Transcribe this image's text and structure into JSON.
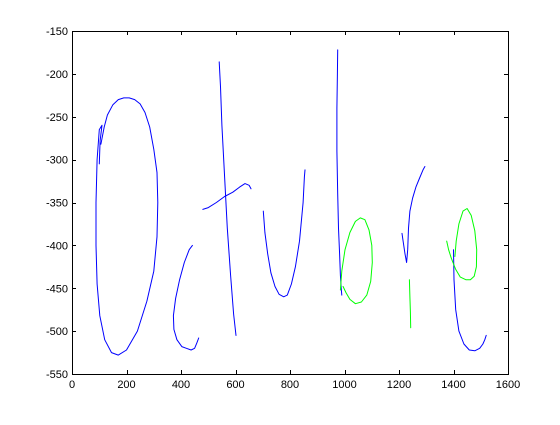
{
  "chart_data": {
    "type": "line",
    "title": "",
    "xlabel": "",
    "ylabel": "",
    "xlim": [
      0,
      1600
    ],
    "ylim": [
      -550,
      -150
    ],
    "xticks": [
      0,
      200,
      400,
      600,
      800,
      1000,
      1200,
      1400,
      1600
    ],
    "yticks": [
      -150,
      -200,
      -250,
      -300,
      -350,
      -400,
      -450,
      -500,
      -550
    ],
    "xtick_labels": [
      "0",
      "200",
      "400",
      "600",
      "800",
      "1000",
      "1200",
      "1400",
      "1600"
    ],
    "ytick_labels": [
      "-150",
      "-200",
      "-250",
      "-300",
      "-350",
      "-400",
      "-450",
      "-500",
      "-550"
    ],
    "grid": false,
    "colors": {
      "blue": "#0000ff",
      "green": "#00ff00",
      "axes": "#000000",
      "background": "#ffffff"
    },
    "series": [
      {
        "color": "blue",
        "points": [
          [
            100,
            -305
          ],
          [
            103,
            -278
          ],
          [
            110,
            -260
          ],
          [
            100,
            -265
          ],
          [
            92,
            -300
          ],
          [
            88,
            -350
          ],
          [
            88,
            -400
          ],
          [
            92,
            -445
          ],
          [
            102,
            -482
          ],
          [
            120,
            -510
          ],
          [
            145,
            -525
          ],
          [
            170,
            -528
          ],
          [
            200,
            -522
          ],
          [
            240,
            -500
          ],
          [
            275,
            -465
          ],
          [
            300,
            -430
          ],
          [
            312,
            -390
          ],
          [
            315,
            -350
          ],
          [
            312,
            -315
          ],
          [
            300,
            -288
          ],
          [
            285,
            -262
          ],
          [
            268,
            -245
          ],
          [
            250,
            -235
          ],
          [
            230,
            -230
          ],
          [
            210,
            -228
          ],
          [
            190,
            -228
          ],
          [
            170,
            -230
          ],
          [
            150,
            -236
          ],
          [
            130,
            -248
          ],
          [
            118,
            -262
          ],
          [
            106,
            -282
          ]
        ]
      },
      {
        "color": "blue",
        "points": [
          [
            442,
            -400
          ],
          [
            430,
            -405
          ],
          [
            412,
            -420
          ],
          [
            395,
            -440
          ],
          [
            380,
            -462
          ],
          [
            372,
            -482
          ],
          [
            374,
            -498
          ],
          [
            385,
            -510
          ],
          [
            403,
            -518
          ],
          [
            420,
            -520
          ],
          [
            437,
            -522
          ],
          [
            450,
            -520
          ],
          [
            458,
            -514
          ],
          [
            465,
            -508
          ]
        ]
      },
      {
        "color": "blue",
        "points": [
          [
            540,
            -186
          ],
          [
            545,
            -215
          ],
          [
            550,
            -260
          ],
          [
            560,
            -320
          ],
          [
            570,
            -380
          ],
          [
            582,
            -435
          ],
          [
            593,
            -480
          ],
          [
            602,
            -505
          ]
        ]
      },
      {
        "color": "blue",
        "points": [
          [
            480,
            -358
          ],
          [
            500,
            -356
          ],
          [
            530,
            -350
          ],
          [
            560,
            -343
          ],
          [
            590,
            -338
          ],
          [
            615,
            -332
          ],
          [
            635,
            -328
          ],
          [
            650,
            -330
          ],
          [
            657,
            -334
          ]
        ]
      },
      {
        "color": "blue",
        "points": [
          [
            702,
            -360
          ],
          [
            708,
            -385
          ],
          [
            718,
            -410
          ],
          [
            730,
            -432
          ],
          [
            745,
            -448
          ],
          [
            760,
            -457
          ],
          [
            777,
            -460
          ],
          [
            790,
            -458
          ],
          [
            805,
            -445
          ],
          [
            820,
            -425
          ],
          [
            835,
            -395
          ],
          [
            848,
            -350
          ],
          [
            853,
            -320
          ],
          [
            855,
            -312
          ]
        ]
      },
      {
        "color": "blue",
        "points": [
          [
            975,
            -172
          ],
          [
            974,
            -200
          ],
          [
            972,
            -240
          ],
          [
            972,
            -290
          ],
          [
            975,
            -340
          ],
          [
            978,
            -380
          ],
          [
            982,
            -410
          ],
          [
            985,
            -435
          ],
          [
            988,
            -450
          ],
          [
            990,
            -458
          ]
        ]
      },
      {
        "color": "green",
        "points": [
          [
            985,
            -452
          ],
          [
            990,
            -430
          ],
          [
            1002,
            -405
          ],
          [
            1020,
            -385
          ],
          [
            1040,
            -372
          ],
          [
            1058,
            -368
          ],
          [
            1075,
            -370
          ],
          [
            1090,
            -382
          ],
          [
            1100,
            -400
          ],
          [
            1102,
            -420
          ],
          [
            1096,
            -442
          ],
          [
            1082,
            -458
          ],
          [
            1062,
            -466
          ],
          [
            1040,
            -468
          ],
          [
            1020,
            -463
          ],
          [
            1005,
            -455
          ],
          [
            995,
            -448
          ]
        ]
      },
      {
        "color": "blue",
        "points": [
          [
            1211,
            -386
          ],
          [
            1215,
            -395
          ],
          [
            1222,
            -410
          ],
          [
            1228,
            -420
          ],
          [
            1232,
            -405
          ],
          [
            1235,
            -380
          ],
          [
            1240,
            -360
          ],
          [
            1250,
            -345
          ],
          [
            1262,
            -332
          ],
          [
            1275,
            -322
          ],
          [
            1288,
            -312
          ],
          [
            1295,
            -308
          ]
        ]
      },
      {
        "color": "green",
        "points": [
          [
            1238,
            -440
          ],
          [
            1240,
            -460
          ],
          [
            1242,
            -478
          ],
          [
            1243,
            -496
          ]
        ]
      },
      {
        "color": "blue",
        "points": [
          [
            1400,
            -405
          ],
          [
            1402,
            -440
          ],
          [
            1408,
            -475
          ],
          [
            1420,
            -500
          ],
          [
            1438,
            -515
          ],
          [
            1458,
            -522
          ],
          [
            1478,
            -523
          ],
          [
            1496,
            -520
          ],
          [
            1508,
            -515
          ],
          [
            1515,
            -510
          ],
          [
            1520,
            -505
          ]
        ]
      },
      {
        "color": "green",
        "points": [
          [
            1375,
            -395
          ],
          [
            1382,
            -405
          ],
          [
            1392,
            -415
          ],
          [
            1408,
            -428
          ],
          [
            1425,
            -437
          ],
          [
            1445,
            -440
          ],
          [
            1462,
            -440
          ],
          [
            1476,
            -436
          ],
          [
            1484,
            -425
          ],
          [
            1485,
            -405
          ],
          [
            1478,
            -383
          ],
          [
            1465,
            -365
          ],
          [
            1450,
            -357
          ],
          [
            1435,
            -360
          ],
          [
            1420,
            -375
          ],
          [
            1410,
            -395
          ],
          [
            1405,
            -413
          ]
        ]
      }
    ]
  }
}
